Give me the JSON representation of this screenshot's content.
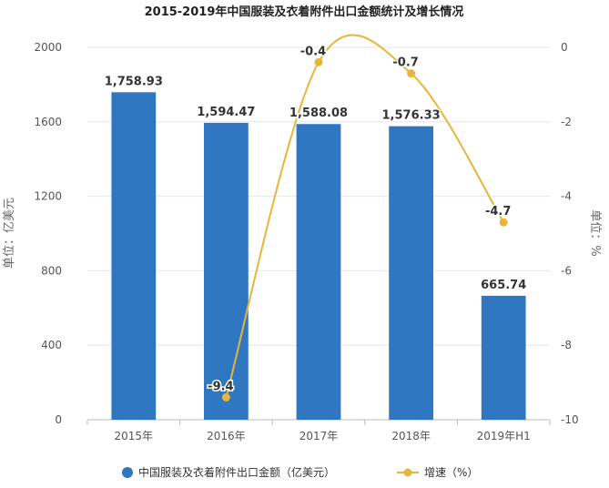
{
  "chart_data": {
    "type": "bar",
    "title": "2015-2019年中国服装及衣着附件出口金额统计及增长情况",
    "categories": [
      "2015年",
      "2016年",
      "2017年",
      "2018年",
      "2019年H1"
    ],
    "ylabel_left": "单位：亿美元",
    "ylabel_right": "单位：%",
    "ylim_left": [
      0,
      2000
    ],
    "ylim_right": [
      -10,
      0
    ],
    "yticks_left": [
      0,
      400,
      800,
      1200,
      1600,
      2000
    ],
    "yticks_right": [
      0,
      -2,
      -4,
      -6,
      -8,
      -10
    ],
    "ytick_labels_left": [
      "0",
      "400",
      "800",
      "1200",
      "1600",
      "2000"
    ],
    "ytick_labels_right": [
      "0",
      "-2",
      "-4",
      "-6",
      "-8",
      "-10"
    ],
    "series": [
      {
        "name": "中国服装及衣着附件出口金额（亿美元）",
        "type": "bar",
        "axis": "left",
        "color": "#2f77c1",
        "values": [
          1758.93,
          1594.47,
          1588.08,
          1576.33,
          665.74
        ],
        "labels": [
          "1,758.93",
          "1,594.47",
          "1,588.08",
          "1,576.33",
          "665.74"
        ]
      },
      {
        "name": "增速（%）",
        "type": "line",
        "axis": "right",
        "color": "#e8b53a",
        "values": [
          null,
          -9.4,
          -0.4,
          -0.7,
          -4.7
        ],
        "labels": [
          "",
          "-9.4",
          "-0.4",
          "-0.7",
          "-4.7"
        ]
      }
    ],
    "grid": true,
    "legend_position": "bottom"
  }
}
